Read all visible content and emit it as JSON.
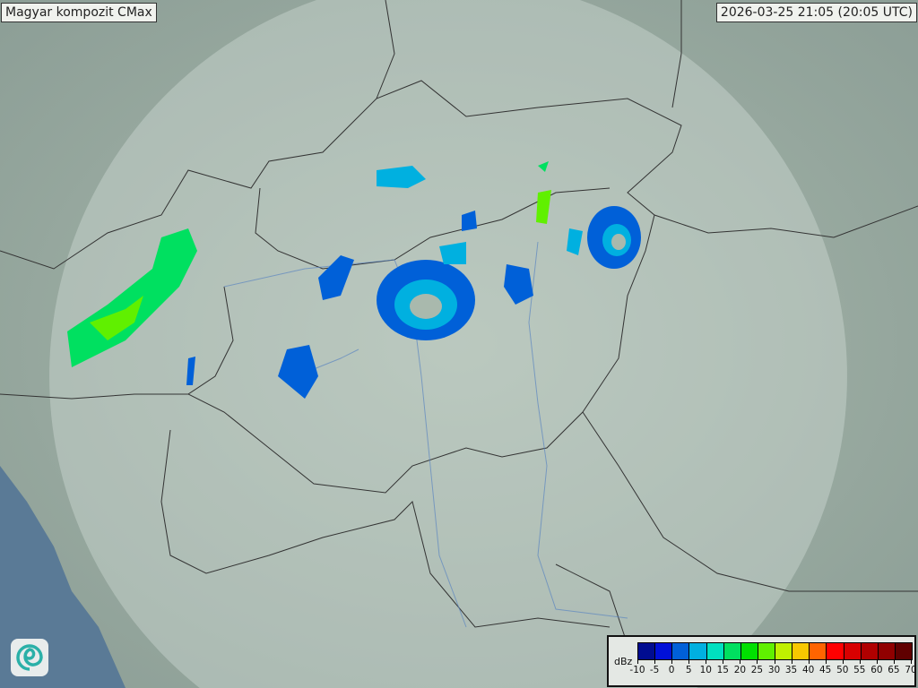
{
  "title": "Magyar kompozit  CMax",
  "timestamp": "2026-03-25 21:05 (20:05 UTC)",
  "legend": {
    "unit": "dBz",
    "ticks": [
      "-10",
      "-5",
      "0",
      "5",
      "10",
      "15",
      "20",
      "25",
      "30",
      "35",
      "40",
      "45",
      "50",
      "55",
      "60",
      "65",
      "70"
    ],
    "colors": [
      "#000c90",
      "#0010d8",
      "#0060d8",
      "#00b0e0",
      "#00e0c0",
      "#00e060",
      "#00e000",
      "#60f000",
      "#c0f000",
      "#f8c800",
      "#ff6400",
      "#ff0000",
      "#d80000",
      "#b00000",
      "#900000",
      "#600000"
    ]
  },
  "logo": {
    "icon": "swirl-logo-icon"
  }
}
